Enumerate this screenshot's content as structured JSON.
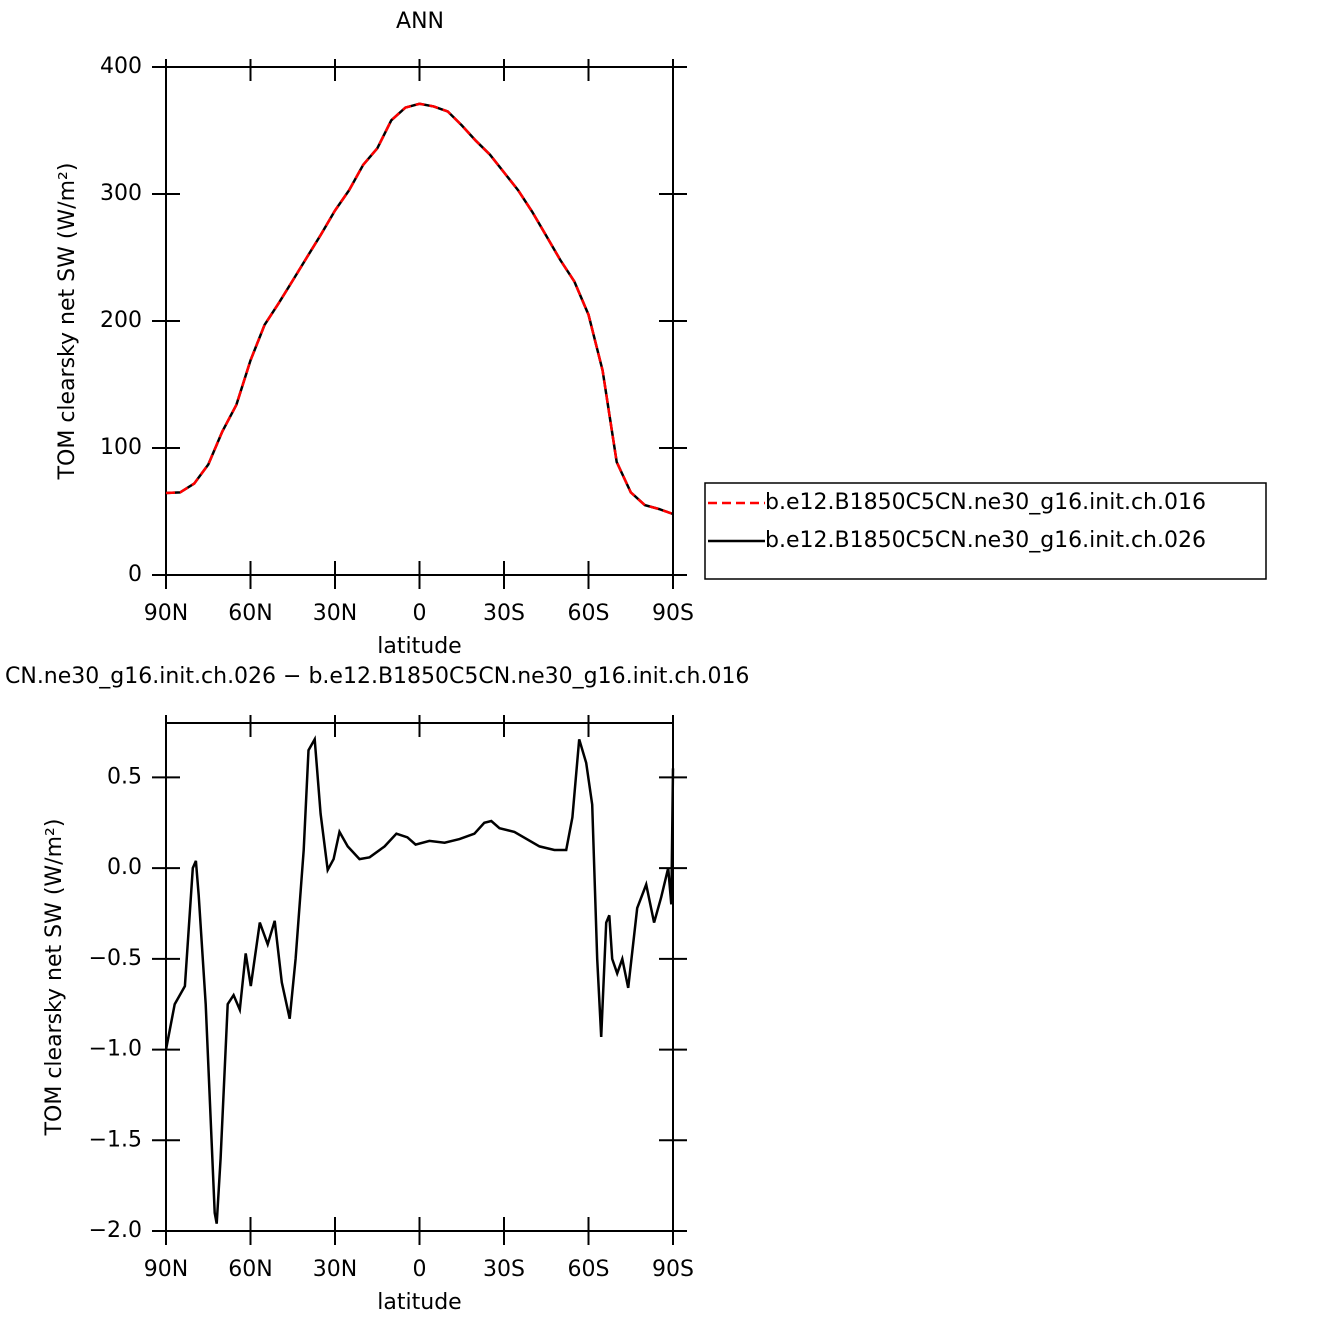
{
  "chart_data": [
    {
      "type": "line",
      "title": "ANN",
      "xlabel": "latitude",
      "ylabel": "TOM clearsky net SW (W/m²)",
      "x": [
        90,
        85,
        80,
        75,
        70,
        65,
        60,
        55,
        50,
        45,
        40,
        35,
        30,
        25,
        20,
        15,
        10,
        5,
        0,
        -5,
        -10,
        -15,
        -20,
        -25,
        -30,
        -35,
        -40,
        -45,
        -50,
        -55,
        -60,
        -65,
        -70,
        -75,
        -80,
        -85,
        -90
      ],
      "series": [
        {
          "name": "b.e12.B1850C5CN.ne30_g16.init.ch.016",
          "color": "#ff0000",
          "dash": "dashed",
          "values": [
            64.6,
            65,
            72,
            87,
            113,
            134,
            169,
            197,
            214,
            232,
            250,
            268,
            287,
            303,
            323,
            336,
            358,
            368,
            371,
            369,
            365,
            354,
            342,
            331,
            317,
            303,
            286,
            267,
            248,
            231,
            205,
            161,
            89,
            65,
            55,
            52,
            48
          ]
        },
        {
          "name": "b.e12.B1850C5CN.ne30_g16.init.ch.026",
          "color": "#000000",
          "dash": "solid",
          "values": [
            64.6,
            65,
            72,
            87,
            113,
            134,
            169,
            197,
            214,
            232,
            250,
            268,
            287,
            303,
            323,
            336,
            358,
            368,
            371,
            369,
            365,
            354,
            342,
            331,
            317,
            303,
            286,
            267,
            248,
            231,
            205,
            161,
            89,
            65,
            55,
            52,
            48
          ]
        }
      ],
      "xlim": [
        90,
        -90
      ],
      "xticks": [
        {
          "value": 90,
          "label": "90N"
        },
        {
          "value": 60,
          "label": "60N"
        },
        {
          "value": 30,
          "label": "30N"
        },
        0,
        {
          "value": -30,
          "label": "30S"
        },
        {
          "value": -60,
          "label": "60S"
        },
        {
          "value": -90,
          "label": "90S"
        }
      ],
      "ylim": [
        0,
        400
      ],
      "yticks": [
        0,
        100,
        200,
        300,
        400
      ],
      "legend": "right"
    },
    {
      "type": "line",
      "title": "CN.ne30_g16.init.ch.026 − b.e12.B1850C5CN.ne30_g16.init.ch.016",
      "xlabel": "latitude",
      "ylabel": "TOM clearsky net SW (W/m²)",
      "x": [
        90,
        86.9,
        83.3,
        80.5,
        79.4,
        78.4,
        75.9,
        72.7,
        72.0,
        70.6,
        68.1,
        66.0,
        63.8,
        61.7,
        59.9,
        56.7,
        53.9,
        51.4,
        48.9,
        46.1,
        44.0,
        41.1,
        39.4,
        37.2,
        35.1,
        32.6,
        30.5,
        28.4,
        25.5,
        21.3,
        17.7,
        12.4,
        8.2,
        4.3,
        1.4,
        -3.5,
        -8.9,
        -14.2,
        -19.5,
        -23.0,
        -25.5,
        -28.4,
        -33.7,
        -42.6,
        -47.9,
        -52.1,
        -54.3,
        -56.7,
        -59.2,
        -61.3,
        -63.1,
        -64.5,
        -66.3,
        -67.4,
        -68.4,
        -70.2,
        -72.0,
        -74.1,
        -77.3,
        -80.5,
        -83.3,
        -85.8,
        -88.3,
        -89.4,
        -90
      ],
      "values": [
        -1.0,
        -0.75,
        -0.65,
        0.0,
        0.04,
        -0.15,
        -0.75,
        -1.9,
        -1.96,
        -1.6,
        -0.75,
        -0.7,
        -0.78,
        -0.47,
        -0.65,
        -0.3,
        -0.42,
        -0.29,
        -0.63,
        -0.83,
        -0.5,
        0.1,
        0.65,
        0.71,
        0.3,
        -0.01,
        0.05,
        0.2,
        0.12,
        0.05,
        0.06,
        0.12,
        0.19,
        0.17,
        0.13,
        0.15,
        0.14,
        0.16,
        0.19,
        0.25,
        0.26,
        0.22,
        0.2,
        0.12,
        0.1,
        0.1,
        0.28,
        0.71,
        0.58,
        0.35,
        -0.5,
        -0.93,
        -0.3,
        -0.26,
        -0.5,
        -0.58,
        -0.5,
        -0.66,
        -0.22,
        -0.09,
        -0.3,
        -0.16,
        0.0,
        -0.2,
        0.55
      ],
      "color": "#000000",
      "xlim": [
        90,
        -90
      ],
      "xticks": [
        {
          "value": 90,
          "label": "90N"
        },
        {
          "value": 60,
          "label": "60N"
        },
        {
          "value": 30,
          "label": "30N"
        },
        0,
        {
          "value": -30,
          "label": "30S"
        },
        {
          "value": -60,
          "label": "60S"
        },
        {
          "value": -90,
          "label": "90S"
        }
      ],
      "ylim": [
        -2.0,
        0.8
      ],
      "yticks": [
        {
          "value": -2.0,
          "label": "−2.0"
        },
        {
          "value": -1.5,
          "label": "−1.5"
        },
        {
          "value": -1.0,
          "label": "−1.0"
        },
        {
          "value": -0.5,
          "label": "−0.5"
        },
        {
          "value": 0.0,
          "label": "0.0"
        },
        0.5
      ]
    }
  ]
}
